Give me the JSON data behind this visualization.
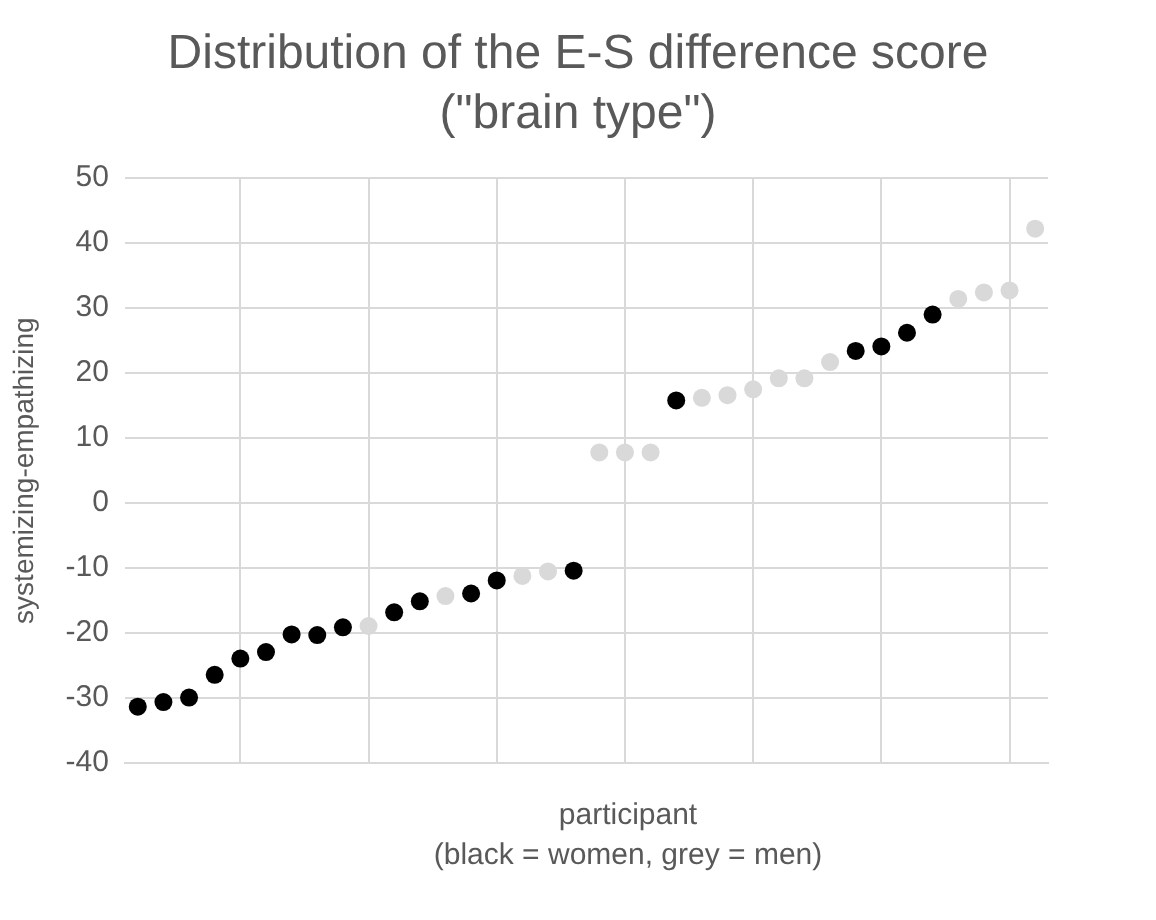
{
  "chart_data": {
    "type": "scatter",
    "title": "Distribution of the E-S difference score (\"brain type\")",
    "xlabel": "participant",
    "ylabel": "systemizing-empathizing",
    "annotations": [
      "(black = women, grey = men)"
    ],
    "categories": [
      null,
      null,
      null,
      null,
      null,
      null,
      null,
      null,
      null,
      null,
      null,
      null,
      null,
      null,
      null,
      null,
      null,
      null,
      null,
      null,
      null,
      null,
      null,
      null,
      null,
      null,
      null,
      null,
      null,
      null,
      null,
      null,
      null,
      null,
      null,
      null
    ],
    "ylim": [
      -40,
      50
    ],
    "yticks": [
      -40,
      -30,
      -20,
      -10,
      0,
      10,
      20,
      30,
      40,
      50
    ],
    "grid": true,
    "legend": false,
    "marker": "circle",
    "series": [
      {
        "color": "#000000",
        "values": [
          -31.3,
          -30.6,
          -29.9,
          -26.4,
          -23.9,
          -22.9,
          -20.2,
          -20.3,
          -19.1,
          null,
          -16.8,
          -15.1,
          null,
          -13.9,
          -11.9,
          null,
          null,
          -10.4,
          null,
          null,
          null,
          15.8,
          null,
          null,
          null,
          null,
          null,
          null,
          23.4,
          24.1,
          26.2,
          29.0,
          null,
          null,
          null,
          null
        ]
      },
      {
        "color": "#d9d9d9",
        "values": [
          null,
          null,
          null,
          null,
          null,
          null,
          null,
          null,
          null,
          -18.9,
          null,
          null,
          -14.3,
          null,
          null,
          -11.2,
          -10.5,
          null,
          7.8,
          7.8,
          7.8,
          null,
          16.2,
          16.6,
          17.5,
          19.2,
          19.2,
          21.7,
          null,
          null,
          null,
          null,
          31.4,
          32.4,
          32.7,
          42.2
        ]
      }
    ]
  }
}
